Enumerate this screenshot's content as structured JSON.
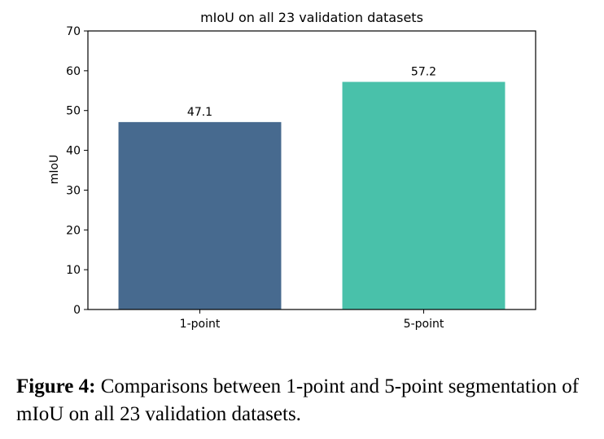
{
  "chart_data": {
    "type": "bar",
    "title": "mIoU on all 23 validation datasets",
    "xlabel": "",
    "ylabel": "mIoU",
    "categories": [
      "1-point",
      "5-point"
    ],
    "values": [
      47.1,
      57.2
    ],
    "value_labels": [
      "47.1",
      "57.2"
    ],
    "colors": [
      "#476a8f",
      "#49c1aa"
    ],
    "ylim": [
      0,
      70
    ],
    "yticks": [
      0,
      10,
      20,
      30,
      40,
      50,
      60,
      70
    ],
    "grid": false,
    "legend": "none"
  },
  "caption": {
    "label": "Figure 4:",
    "text": " Comparisons between 1-point and 5-point segmentation of mIoU on all 23 validation datasets."
  }
}
